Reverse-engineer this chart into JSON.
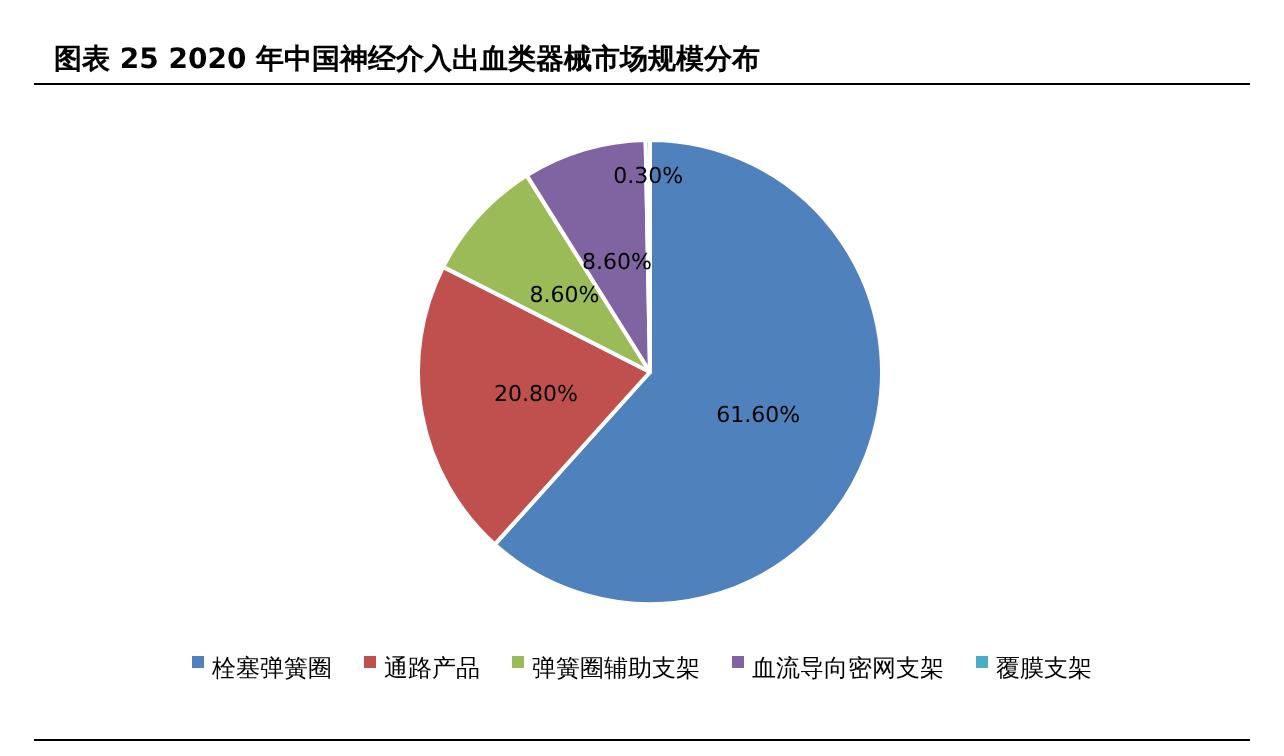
{
  "chart_data": {
    "type": "pie",
    "title": "图表 25   2020 年中国神经介入出血类器械市场规模分布",
    "categories": [
      "栓塞弹簧圈",
      "通路产品",
      "弹簧圈辅助支架",
      "血流导向密网支架",
      "覆膜支架"
    ],
    "values": [
      61.6,
      20.8,
      8.6,
      8.6,
      0.3
    ],
    "value_labels": [
      "61.60%",
      "20.80%",
      "8.60%",
      "8.60%",
      "0.30%"
    ],
    "colors": [
      "#4f81bd",
      "#c0504d",
      "#9bbb59",
      "#8064a2",
      "#4bacc6"
    ],
    "legend": "bottom"
  }
}
